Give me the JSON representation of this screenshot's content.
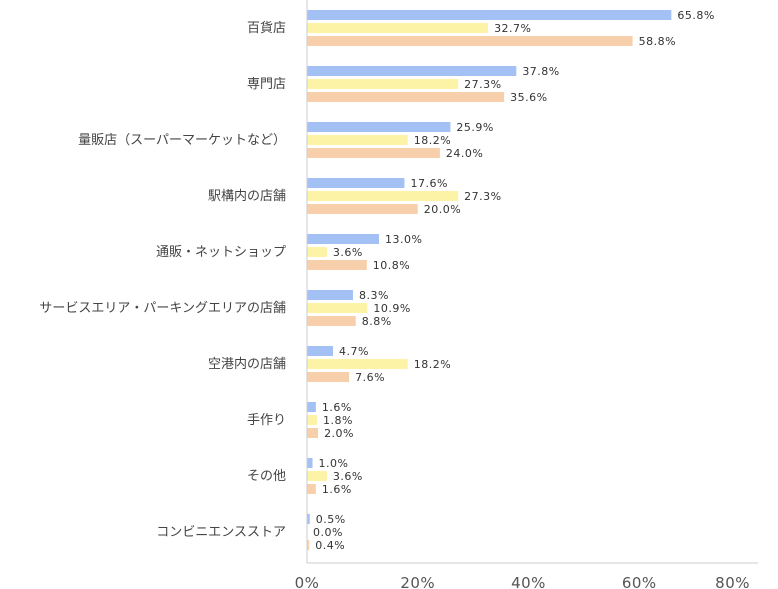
{
  "chart_data": {
    "type": "bar",
    "orientation": "horizontal",
    "categories": [
      "百貨店",
      "専門店",
      "量販店（スーパーマーケットなど）",
      "駅構内の店舗",
      "通販・ネットショップ",
      "サービスエリア・パーキングエリアの店舗",
      "空港内の店舗",
      "手作り",
      "その他",
      "コンビニエンスストア"
    ],
    "series": [
      {
        "color": "#a3c1f5",
        "values": [
          65.8,
          37.8,
          25.9,
          17.6,
          13.0,
          8.3,
          4.7,
          1.6,
          1.0,
          0.5
        ]
      },
      {
        "color": "#fdf3a7",
        "values": [
          32.7,
          27.3,
          18.2,
          27.3,
          3.6,
          10.9,
          18.2,
          1.8,
          3.6,
          0.0
        ]
      },
      {
        "color": "#f7cfab",
        "values": [
          58.8,
          35.6,
          24.0,
          20.0,
          10.8,
          8.8,
          7.6,
          2.0,
          1.6,
          0.4
        ]
      }
    ],
    "xlim": [
      0,
      80
    ],
    "xticks": [
      0,
      20,
      40,
      60,
      80
    ],
    "xtick_labels": [
      "0%",
      "20%",
      "40%",
      "60%",
      "80%"
    ],
    "value_label_suffix": "%",
    "value_decimals": 1,
    "grid": false,
    "legend": "none"
  }
}
